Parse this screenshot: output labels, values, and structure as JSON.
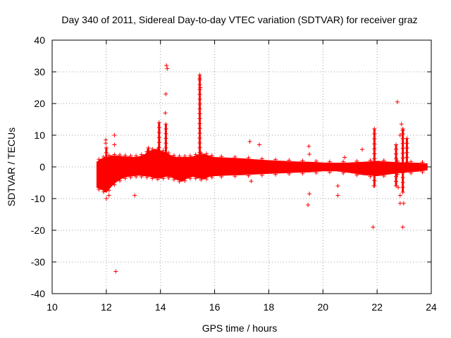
{
  "chart_data": {
    "type": "scatter",
    "title": "Day 340 of 2011, Sidereal Day-to-day VTEC variation (SDTVAR) for receiver graz",
    "xlabel": "GPS time / hours",
    "ylabel": "SDTVAR / TECUs",
    "xlim": [
      10,
      24
    ],
    "ylim": [
      -40,
      40
    ],
    "xticks": [
      10,
      12,
      14,
      16,
      18,
      20,
      22,
      24
    ],
    "yticks": [
      -40,
      -30,
      -20,
      -10,
      0,
      10,
      20,
      30,
      40
    ],
    "xtick_labels": [
      "10",
      "12",
      "14",
      "16",
      "18",
      "20",
      "22",
      "24"
    ],
    "ytick_labels": [
      "-40",
      "-30",
      "-20",
      "-10",
      "0",
      "10",
      "20",
      "30",
      "40"
    ],
    "grid": true,
    "marker": "+",
    "color": "#ff0000",
    "band": {
      "description": "dense continuous data band (upper and lower envelope in TECU)",
      "x": [
        11.65,
        11.8,
        12.0,
        12.2,
        12.4,
        12.6,
        12.8,
        13.0,
        13.2,
        13.4,
        13.6,
        13.8,
        14.0,
        14.2,
        14.4,
        14.6,
        14.8,
        15.0,
        15.2,
        15.4,
        15.6,
        15.8,
        16.0,
        16.5,
        17.0,
        17.5,
        18.0,
        18.5,
        19.0,
        19.5,
        20.0,
        20.5,
        21.0,
        21.5,
        22.0,
        22.5,
        23.0,
        23.5,
        23.85
      ],
      "upper": [
        1.5,
        2.5,
        3.0,
        3.5,
        3.5,
        3.3,
        3.2,
        3.0,
        3.2,
        3.8,
        5.0,
        5.5,
        5.0,
        4.5,
        3.5,
        3.0,
        3.0,
        3.0,
        3.2,
        3.8,
        4.0,
        3.5,
        3.0,
        2.8,
        2.6,
        2.3,
        2.0,
        1.8,
        1.6,
        1.5,
        1.3,
        1.2,
        1.3,
        1.5,
        1.8,
        1.5,
        1.3,
        1.2,
        1.0
      ],
      "lower": [
        -6.5,
        -7.0,
        -8.0,
        -6.0,
        -4.5,
        -3.5,
        -3.0,
        -2.8,
        -2.6,
        -2.8,
        -3.0,
        -3.5,
        -3.5,
        -3.0,
        -3.2,
        -4.0,
        -4.5,
        -3.5,
        -3.0,
        -3.5,
        -3.8,
        -3.0,
        -2.8,
        -2.6,
        -2.5,
        -2.3,
        -2.1,
        -1.9,
        -1.7,
        -1.6,
        -1.3,
        -1.3,
        -1.8,
        -2.5,
        -2.8,
        -2.2,
        -1.7,
        -1.4,
        -1.0
      ]
    },
    "spikes": [
      {
        "x": 13.95,
        "y0": 3,
        "y1": 14
      },
      {
        "x": 14.2,
        "y0": 3,
        "y1": 13.5
      },
      {
        "x": 15.45,
        "y0": 3,
        "y1": 29
      },
      {
        "x": 13.55,
        "y0": 3,
        "y1": 6
      },
      {
        "x": 21.9,
        "y0": 1,
        "y1": 12
      },
      {
        "x": 12.0,
        "y0": 3,
        "y1": 6
      },
      {
        "x": 22.7,
        "y0": -6,
        "y1": 7
      },
      {
        "x": 22.95,
        "y0": -8,
        "y1": 12
      },
      {
        "x": 23.1,
        "y0": 0,
        "y1": 9
      },
      {
        "x": 21.9,
        "y0": -6,
        "y1": -1
      }
    ],
    "outliers": [
      {
        "x": 12.35,
        "y": -33
      },
      {
        "x": 14.22,
        "y": 32
      },
      {
        "x": 14.25,
        "y": 31
      },
      {
        "x": 14.2,
        "y": 23
      },
      {
        "x": 14.18,
        "y": 17
      },
      {
        "x": 15.45,
        "y": 28
      },
      {
        "x": 15.47,
        "y": 25
      },
      {
        "x": 12.3,
        "y": 10
      },
      {
        "x": 11.98,
        "y": 8.5
      },
      {
        "x": 11.98,
        "y": 7.5
      },
      {
        "x": 12.3,
        "y": 7
      },
      {
        "x": 12.0,
        "y": -10
      },
      {
        "x": 12.1,
        "y": -9
      },
      {
        "x": 13.05,
        "y": -9
      },
      {
        "x": 17.3,
        "y": 8
      },
      {
        "x": 17.65,
        "y": 7
      },
      {
        "x": 17.35,
        "y": -4.5
      },
      {
        "x": 19.48,
        "y": 6.5
      },
      {
        "x": 19.5,
        "y": 4
      },
      {
        "x": 19.5,
        "y": -8.5
      },
      {
        "x": 19.45,
        "y": -12
      },
      {
        "x": 20.55,
        "y": -6
      },
      {
        "x": 20.55,
        "y": -9
      },
      {
        "x": 20.8,
        "y": 3
      },
      {
        "x": 21.45,
        "y": 5.5
      },
      {
        "x": 21.85,
        "y": -19
      },
      {
        "x": 21.88,
        "y": -6
      },
      {
        "x": 22.75,
        "y": 20.5
      },
      {
        "x": 22.9,
        "y": 13.5
      },
      {
        "x": 22.95,
        "y": 11.5
      },
      {
        "x": 22.85,
        "y": 10
      },
      {
        "x": 22.78,
        "y": -6.5
      },
      {
        "x": 22.85,
        "y": -9
      },
      {
        "x": 22.85,
        "y": -11.5
      },
      {
        "x": 22.98,
        "y": -11.5
      },
      {
        "x": 22.95,
        "y": -19
      }
    ]
  }
}
